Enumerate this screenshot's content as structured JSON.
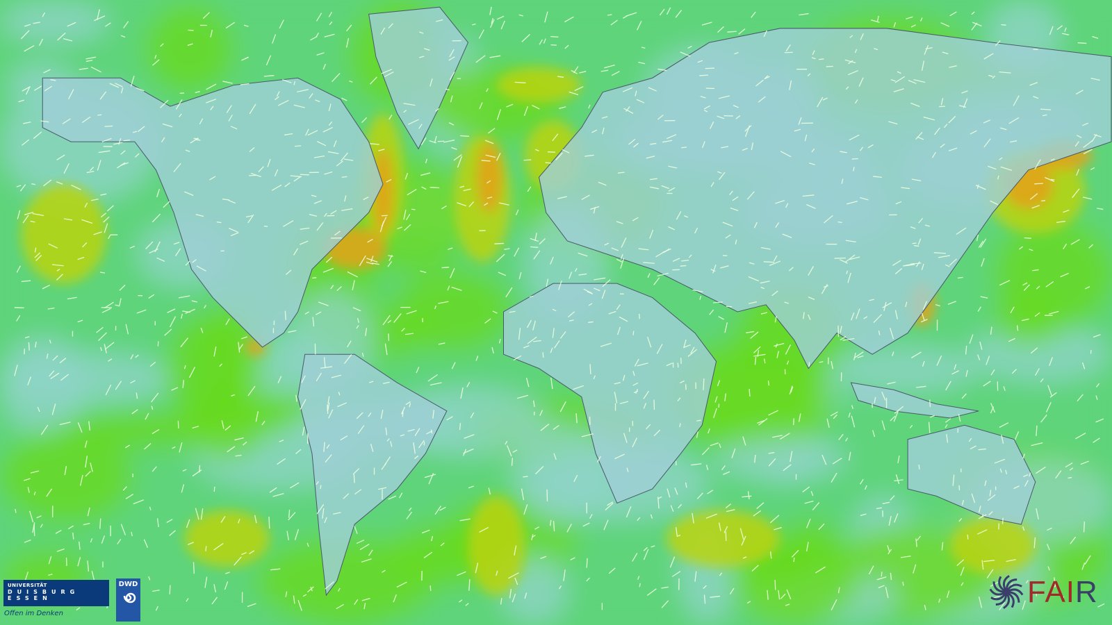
{
  "map": {
    "colors": {
      "calm": "#8fd3c8",
      "low": "#5fd47a",
      "mid": "#66d91f",
      "high": "#b9d40c",
      "strong": "#e4a21a",
      "land": "#9fcfd6",
      "border": "#4a5a6a",
      "streak": "#f0ffe0"
    }
  },
  "logos": {
    "ude": {
      "line1": "UNIVERSITÄT",
      "line2": "DUISBURG",
      "line3": "ESSEN",
      "slogan": "Offen im Denken"
    },
    "dwd": {
      "text": "DWD"
    },
    "fair": {
      "text_main": "FAI",
      "text_end": "R"
    }
  }
}
